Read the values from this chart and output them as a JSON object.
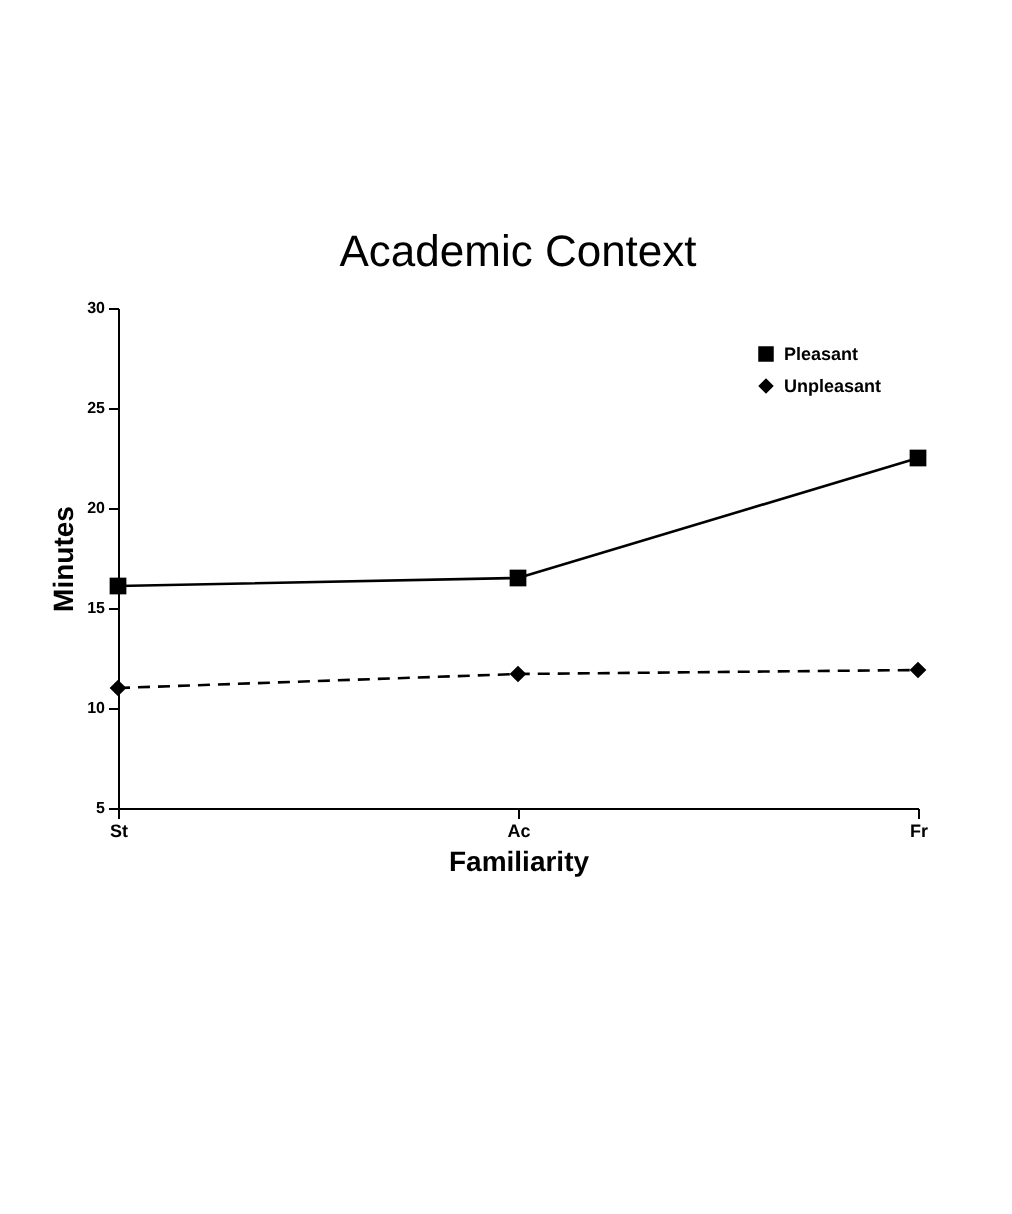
{
  "chart_data": {
    "type": "line",
    "title": "Academic Context",
    "xlabel": "Familiarity",
    "ylabel": "Minutes",
    "categories": [
      "St",
      "Ac",
      "Fr"
    ],
    "series": [
      {
        "name": "Pleasant",
        "color": "#000000",
        "values": [
          16.1,
          16.5,
          22.5
        ],
        "marker": "square",
        "line_style": "solid"
      },
      {
        "name": "Unpleasant",
        "color": "#000000",
        "values": [
          11.0,
          11.7,
          11.9
        ],
        "marker": "diamond",
        "line_style": "dashed"
      }
    ],
    "ylim": [
      5,
      30
    ],
    "yticks": [
      5,
      10,
      15,
      20,
      25,
      30
    ],
    "grid": false,
    "legend": "top right"
  }
}
